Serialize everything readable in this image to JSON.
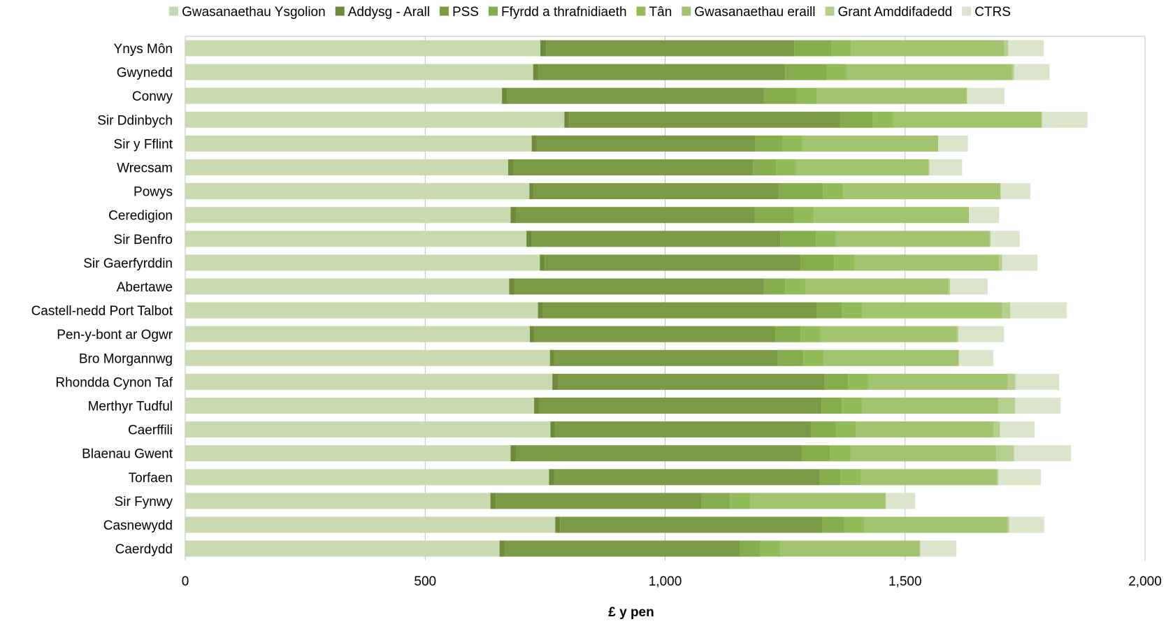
{
  "chart_data": {
    "type": "bar",
    "orientation": "horizontal",
    "stacked": true,
    "xlabel": "£ y pen",
    "ylabel": "",
    "xlim": [
      0,
      2000
    ],
    "x_ticks": [
      0,
      500,
      1000,
      1500,
      2000
    ],
    "x_tick_labels": [
      "0",
      "500",
      "1,000",
      "1,500",
      "2,000"
    ],
    "grid": "vertical gridlines",
    "legend_position": "top",
    "categories": [
      "Ynys Môn",
      "Gwynedd",
      "Conwy",
      "Sir Ddinbych",
      "Sir y Fflint",
      "Wrecsam",
      "Powys",
      "Ceredigion",
      "Sir Benfro",
      "Sir Gaerfyrddin",
      "Abertawe",
      "Castell-nedd Port Talbot",
      "Pen-y-bont ar Ogwr",
      "Bro Morgannwg",
      "Rhondda Cynon Taf",
      "Merthyr Tudful",
      "Caerffili",
      "Blaenau Gwent",
      "Torfaen",
      "Sir Fynwy",
      "Casnewydd",
      "Caerdydd"
    ],
    "series": [
      {
        "name": "Gwasanaethau Ysgolion",
        "color": "#c9dab0",
        "values": [
          740,
          725,
          660,
          790,
          722,
          673,
          717,
          678,
          711,
          739,
          675,
          735,
          718,
          760,
          765,
          727,
          761,
          678,
          758,
          636,
          771,
          655
        ]
      },
      {
        "name": "Addysg - Arall",
        "color": "#6e8a3a",
        "values": [
          12,
          11,
          11,
          10,
          10,
          11,
          9,
          11,
          11,
          10,
          11,
          10,
          9,
          9,
          12,
          10,
          10,
          11,
          11,
          11,
          10,
          10
        ]
      },
      {
        "name": "PSS",
        "color": "#7a9a45",
        "values": [
          517,
          514,
          535,
          565,
          456,
          499,
          510,
          498,
          518,
          533,
          520,
          571,
          503,
          466,
          555,
          589,
          532,
          595,
          553,
          428,
          546,
          491
        ]
      },
      {
        "name": "Ffyrdd a thrafnidiaeth",
        "color": "#86ad4d",
        "values": [
          77,
          87,
          68,
          68,
          56,
          48,
          93,
          81,
          74,
          70,
          44,
          53,
          52,
          53,
          50,
          42,
          53,
          60,
          44,
          60,
          46,
          42
        ]
      },
      {
        "name": "Tân",
        "color": "#92bb5a",
        "values": [
          42,
          42,
          42,
          42,
          42,
          42,
          42,
          42,
          42,
          42,
          42,
          42,
          42,
          42,
          42,
          42,
          42,
          42,
          42,
          42,
          42,
          42
        ]
      },
      {
        "name": "Gwasanaethau eraill",
        "color": "#a3c46f",
        "values": [
          319,
          344,
          313,
          310,
          283,
          276,
          328,
          323,
          320,
          302,
          298,
          291,
          284,
          282,
          290,
          284,
          287,
          304,
          283,
          283,
          298,
          290
        ]
      },
      {
        "name": "Grant Amddifadedd",
        "color": "#b5cf8f",
        "values": [
          8,
          4,
          0,
          0,
          0,
          2,
          0,
          0,
          2,
          6,
          4,
          17,
          3,
          0,
          16,
          35,
          13,
          37,
          3,
          0,
          4,
          2
        ]
      },
      {
        "name": "CTRS",
        "color": "#dbe5cc",
        "values": [
          74,
          74,
          78,
          95,
          62,
          68,
          62,
          63,
          61,
          74,
          78,
          118,
          95,
          72,
          91,
          95,
          72,
          119,
          89,
          61,
          73,
          75
        ]
      }
    ]
  }
}
